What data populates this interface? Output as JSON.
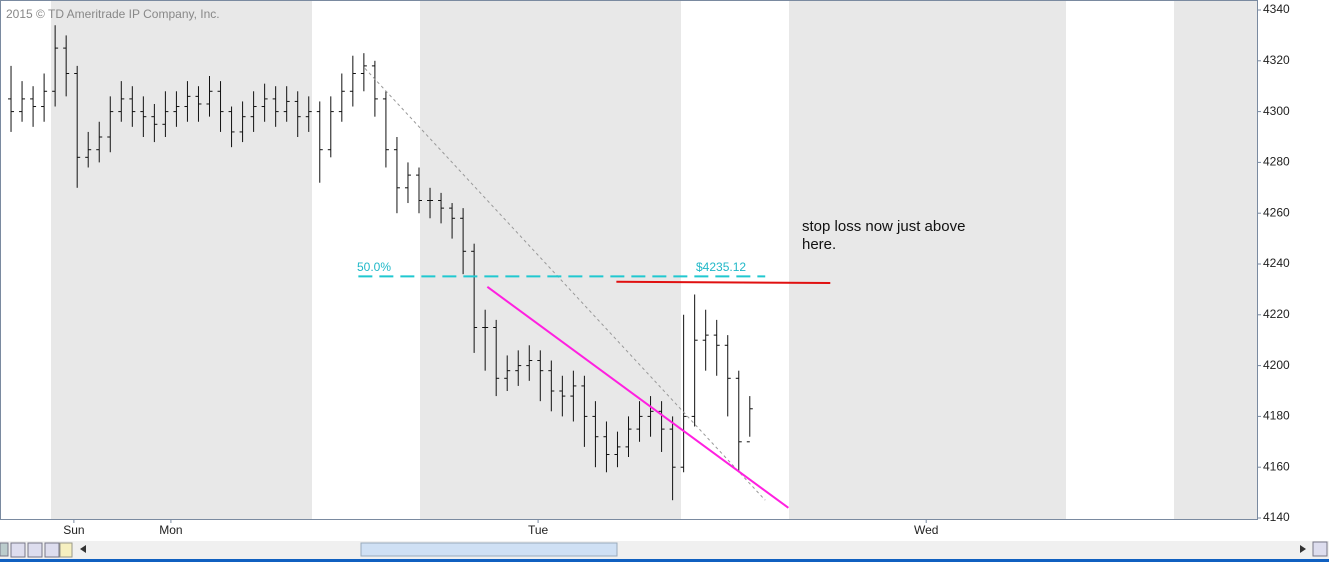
{
  "chart_data": {
    "type": "ohlc",
    "watermark": "2015 © TD Ameritrade IP Company, Inc.",
    "x": [
      0,
      1,
      2,
      3,
      4,
      5,
      6,
      7,
      8,
      9,
      10,
      11,
      12,
      13,
      14,
      15,
      16,
      17,
      18,
      19,
      20,
      21,
      22,
      23,
      24,
      25,
      26,
      27,
      28,
      29,
      30,
      31,
      32,
      33,
      34,
      35,
      36,
      37,
      38,
      39,
      40,
      41,
      42,
      43,
      44,
      45,
      46,
      47,
      48,
      49,
      50,
      51,
      52,
      53,
      54,
      55,
      56,
      57,
      58,
      59,
      60,
      61,
      62,
      63,
      64,
      65,
      66,
      67
    ],
    "open": [
      4305,
      4300,
      4305,
      4302,
      4308,
      4325,
      4315,
      4282,
      4285,
      4290,
      4300,
      4305,
      4300,
      4298,
      4295,
      4300,
      4302,
      4306,
      4303,
      4308,
      4300,
      4292,
      4298,
      4302,
      4305,
      4300,
      4304,
      4298,
      4300,
      4285,
      4300,
      4308,
      4315,
      4318,
      4305,
      4285,
      4270,
      4275,
      4265,
      4265,
      4262,
      4258,
      4245,
      4215,
      4215,
      4195,
      4198,
      4200,
      4202,
      4198,
      4190,
      4188,
      4192,
      4180,
      4172,
      4165,
      4168,
      4175,
      4180,
      4182,
      4175,
      4160,
      4180,
      4210,
      4212,
      4208,
      4195,
      4170
    ],
    "high": [
      4318,
      4312,
      4310,
      4315,
      4334,
      4330,
      4318,
      4292,
      4296,
      4306,
      4312,
      4310,
      4306,
      4303,
      4308,
      4308,
      4312,
      4310,
      4314,
      4312,
      4302,
      4304,
      4308,
      4311,
      4310,
      4310,
      4308,
      4306,
      4304,
      4306,
      4315,
      4322,
      4323,
      4320,
      4308,
      4290,
      4280,
      4278,
      4270,
      4268,
      4264,
      4262,
      4248,
      4222,
      4218,
      4204,
      4206,
      4208,
      4206,
      4202,
      4196,
      4198,
      4196,
      4186,
      4178,
      4174,
      4180,
      4186,
      4188,
      4186,
      4180,
      4220,
      4228,
      4222,
      4218,
      4212,
      4198,
      4188
    ],
    "low": [
      4292,
      4296,
      4294,
      4296,
      4302,
      4306,
      4270,
      4278,
      4280,
      4284,
      4296,
      4294,
      4290,
      4288,
      4290,
      4294,
      4296,
      4296,
      4298,
      4292,
      4286,
      4288,
      4292,
      4296,
      4294,
      4296,
      4290,
      4292,
      4272,
      4282,
      4296,
      4302,
      4308,
      4298,
      4278,
      4260,
      4264,
      4260,
      4258,
      4256,
      4250,
      4236,
      4205,
      4198,
      4188,
      4190,
      4192,
      4194,
      4186,
      4182,
      4180,
      4178,
      4168,
      4160,
      4158,
      4160,
      4164,
      4170,
      4172,
      4166,
      4147,
      4158,
      4176,
      4198,
      4196,
      4180,
      4158,
      4172
    ],
    "close": [
      4300,
      4305,
      4302,
      4308,
      4325,
      4315,
      4282,
      4285,
      4290,
      4300,
      4305,
      4300,
      4298,
      4295,
      4300,
      4302,
      4306,
      4303,
      4308,
      4300,
      4292,
      4298,
      4302,
      4305,
      4300,
      4304,
      4298,
      4300,
      4285,
      4300,
      4308,
      4315,
      4318,
      4305,
      4285,
      4270,
      4275,
      4265,
      4265,
      4262,
      4258,
      4245,
      4215,
      4215,
      4195,
      4198,
      4200,
      4202,
      4198,
      4190,
      4188,
      4192,
      4180,
      4172,
      4165,
      4168,
      4175,
      4180,
      4182,
      4175,
      4160,
      4180,
      4210,
      4212,
      4208,
      4195,
      4170,
      4183
    ],
    "color": "#111111",
    "xlim": [
      -1,
      113
    ],
    "xticks": [
      {
        "value": 5.7,
        "label": "Sun"
      },
      {
        "value": 14.5,
        "label": "Mon"
      },
      {
        "value": 47.8,
        "label": "Tue"
      },
      {
        "value": 83,
        "label": "Wed"
      }
    ],
    "ylim": [
      4140,
      4340
    ],
    "yticks": [
      4140,
      4160,
      4180,
      4200,
      4220,
      4240,
      4260,
      4280,
      4300,
      4320,
      4340
    ],
    "fibonacci": {
      "label": "50.0%",
      "price_label": "$4235.12",
      "value": 4235.12,
      "x": [
        31.5,
        68.4
      ],
      "color": "#20c8d0"
    },
    "stop_line": {
      "x": [
        54.9,
        74.3
      ],
      "y": [
        4233,
        4232.5
      ],
      "color": "#e01010"
    },
    "trendline": {
      "x": [
        43.2,
        70.5
      ],
      "y": [
        4231,
        4144
      ],
      "color": "#ff20e0"
    },
    "dotted_line": {
      "x": [
        32.1,
        68.4
      ],
      "y": [
        4317,
        4147
      ],
      "color": "#999999"
    },
    "annotation": "stop loss now just above here."
  }
}
